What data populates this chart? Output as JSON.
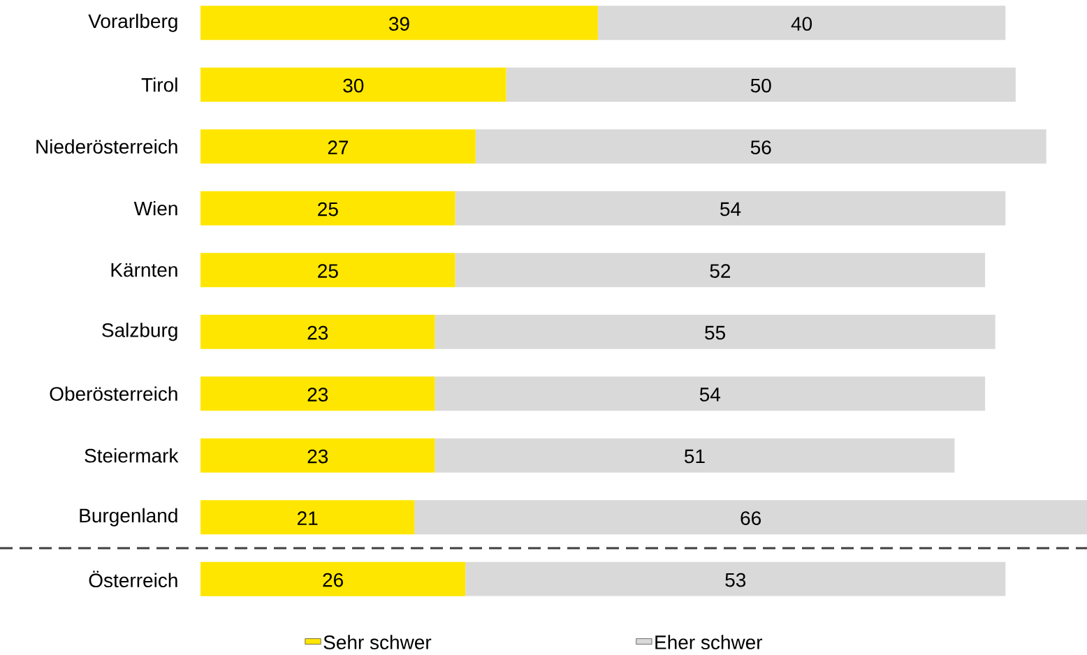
{
  "chart_data": {
    "type": "bar",
    "orientation": "horizontal",
    "stacked": true,
    "data_labels": true,
    "legend": "bottom",
    "categories": [
      "Vorarlberg",
      "Tirol",
      "Niederösterreich",
      "Wien",
      "Kärnten",
      "Salzburg",
      "Oberösterreich",
      "Steiermark",
      "Burgenland",
      "Österreich"
    ],
    "series": [
      {
        "name": "Sehr schwer",
        "color": "#ffe600",
        "values": [
          39,
          30,
          27,
          25,
          25,
          23,
          23,
          23,
          21,
          26
        ]
      },
      {
        "name": "Eher schwer",
        "color": "#d9d9d9",
        "values": [
          40,
          50,
          56,
          54,
          52,
          55,
          54,
          51,
          66,
          53
        ]
      }
    ]
  }
}
